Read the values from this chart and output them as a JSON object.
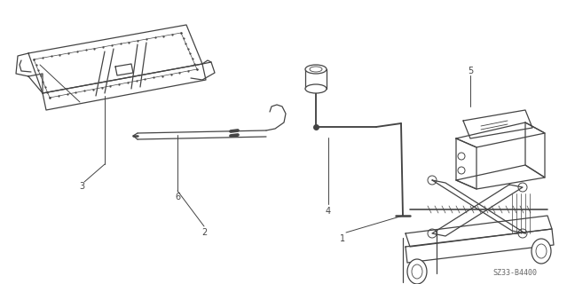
{
  "bg_color": "#ffffff",
  "line_color": "#444444",
  "fig_width": 6.39,
  "fig_height": 3.2,
  "dpi": 100,
  "part_number": "SZ33-B4400"
}
